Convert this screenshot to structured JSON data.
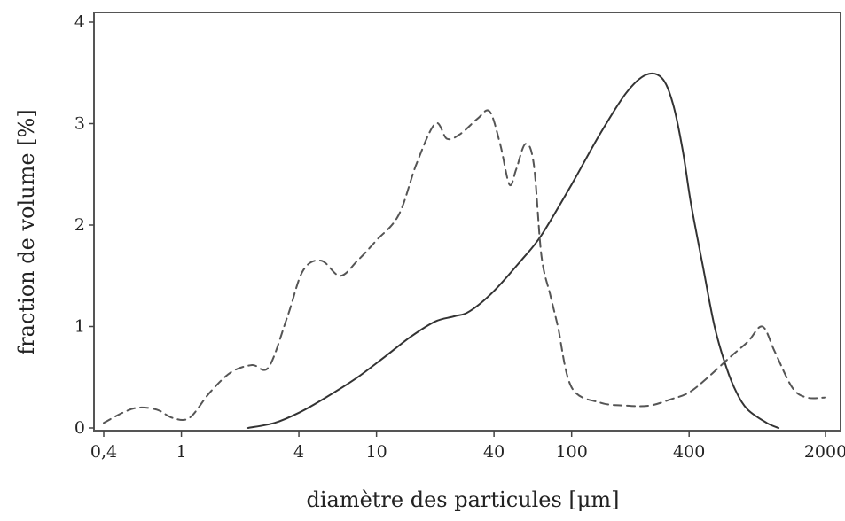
{
  "chart_data": {
    "type": "line",
    "xlabel": "diamètre des particules [μm]",
    "ylabel": "fraction de volume [%]",
    "x_scale": "log",
    "xlim": [
      0.4,
      2000
    ],
    "ylim": [
      0,
      4
    ],
    "x_ticks": [
      {
        "value": 0.4,
        "label": "0,4"
      },
      {
        "value": 1,
        "label": "1"
      },
      {
        "value": 4,
        "label": "4"
      },
      {
        "value": 10,
        "label": "10"
      },
      {
        "value": 40,
        "label": "40"
      },
      {
        "value": 100,
        "label": "100"
      },
      {
        "value": 400,
        "label": "400"
      },
      {
        "value": 2000,
        "label": "2000"
      }
    ],
    "y_ticks": [
      {
        "value": 0,
        "label": "0"
      },
      {
        "value": 1,
        "label": "1"
      },
      {
        "value": 2,
        "label": "2"
      },
      {
        "value": 3,
        "label": "3"
      },
      {
        "value": 4,
        "label": "4"
      }
    ],
    "grid": false,
    "series": [
      {
        "style": "solid",
        "color": "#333333",
        "x": [
          2.2,
          3,
          4,
          5.5,
          8,
          11,
          15,
          20,
          25,
          30,
          40,
          55,
          70,
          100,
          140,
          190,
          240,
          290,
          330,
          370,
          410,
          470,
          540,
          620,
          700,
          800,
          1000,
          1150
        ],
        "y": [
          0,
          0.05,
          0.15,
          0.3,
          0.5,
          0.7,
          0.9,
          1.05,
          1.1,
          1.15,
          1.35,
          1.65,
          1.9,
          2.4,
          2.9,
          3.3,
          3.48,
          3.45,
          3.2,
          2.75,
          2.2,
          1.6,
          1.0,
          0.6,
          0.35,
          0.18,
          0.05,
          0
        ]
      },
      {
        "style": "dashed",
        "color": "#555555",
        "x": [
          0.4,
          0.5,
          0.6,
          0.75,
          0.9,
          1.1,
          1.4,
          1.8,
          2.3,
          2.8,
          3.5,
          4.2,
          5.2,
          6.5,
          8,
          10,
          13,
          16,
          20,
          23,
          27,
          33,
          38,
          43,
          48,
          52,
          58,
          64,
          70,
          78,
          85,
          100,
          140,
          190,
          250,
          320,
          400,
          500,
          650,
          800,
          950,
          1100,
          1350,
          1600,
          2000
        ],
        "y": [
          0.05,
          0.15,
          0.2,
          0.18,
          0.1,
          0.1,
          0.35,
          0.55,
          0.62,
          0.6,
          1.1,
          1.55,
          1.65,
          1.5,
          1.65,
          1.85,
          2.1,
          2.6,
          3.0,
          2.85,
          2.9,
          3.05,
          3.12,
          2.8,
          2.4,
          2.55,
          2.8,
          2.6,
          1.7,
          1.3,
          1.0,
          0.4,
          0.25,
          0.22,
          0.22,
          0.28,
          0.35,
          0.5,
          0.7,
          0.85,
          1.0,
          0.75,
          0.4,
          0.3,
          0.3
        ]
      }
    ]
  }
}
